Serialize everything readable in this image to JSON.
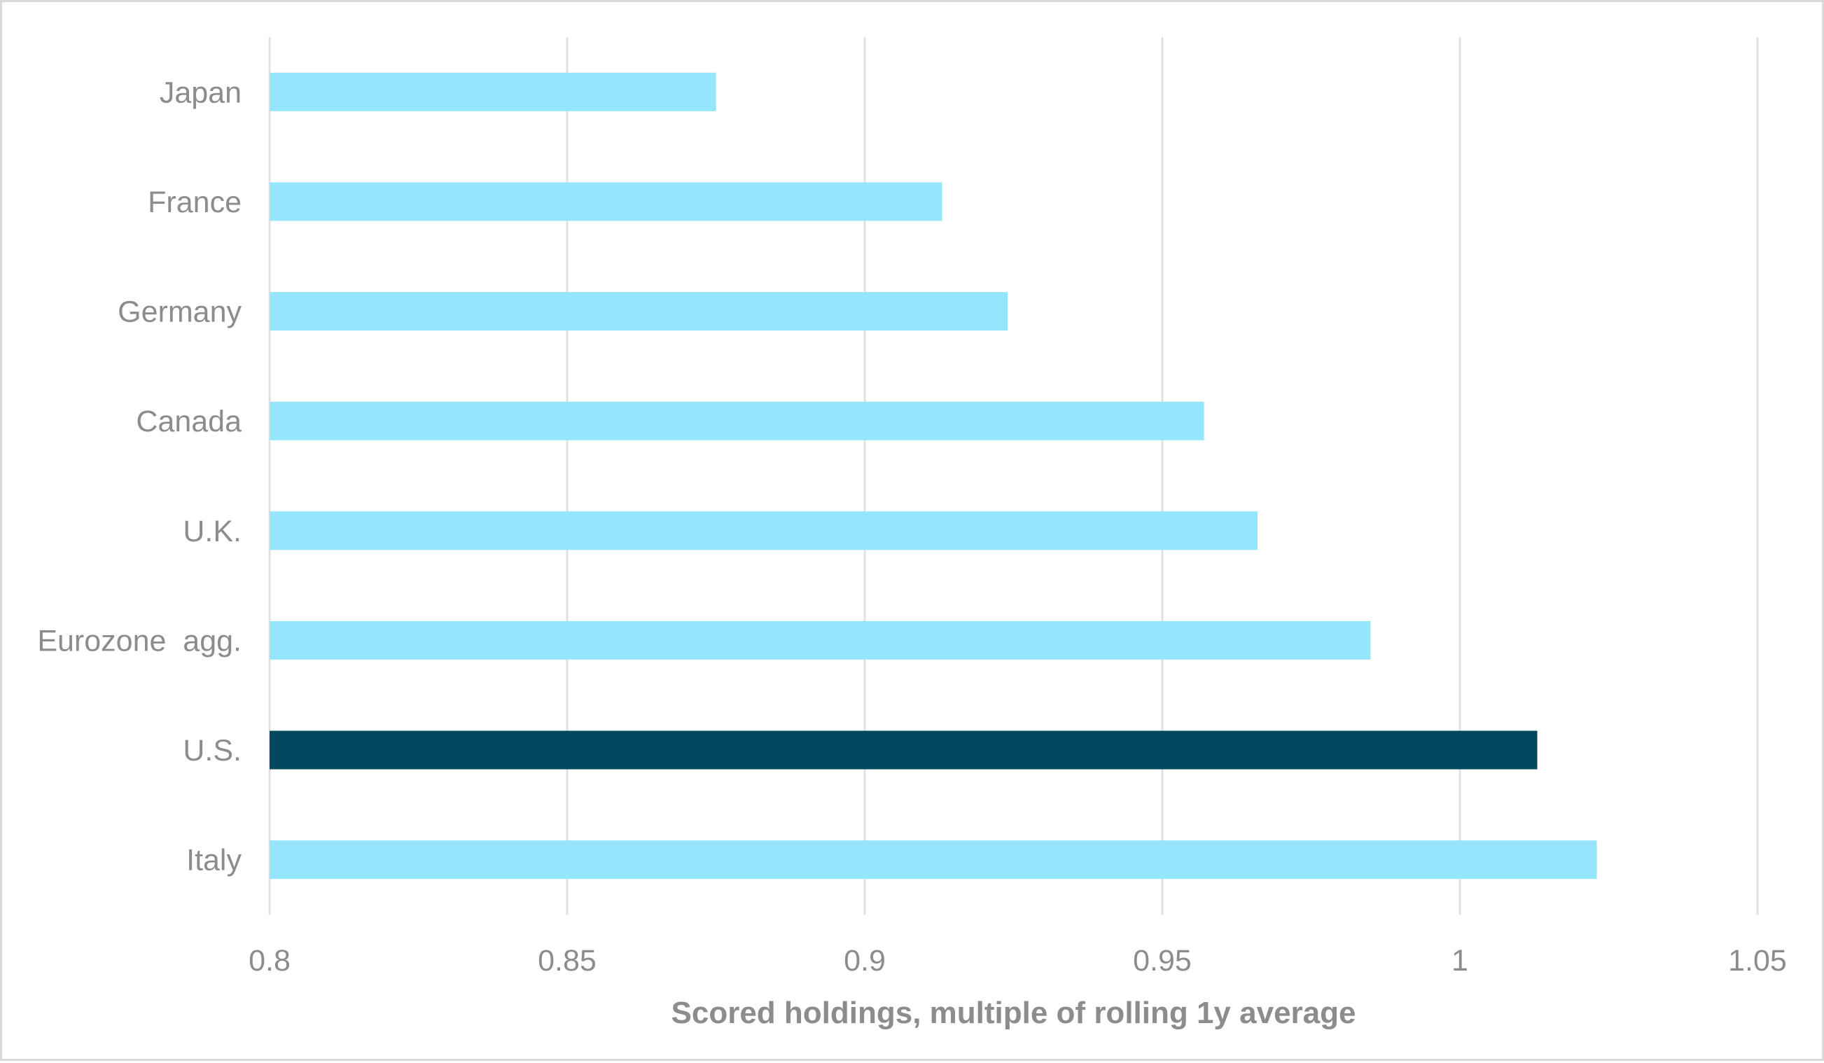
{
  "chart_data": {
    "type": "bar",
    "orientation": "horizontal",
    "categories": [
      "Japan",
      "France",
      "Germany",
      "Canada",
      "U.K.",
      "Eurozone  agg.",
      "U.S.",
      "Italy"
    ],
    "values": [
      0.875,
      0.913,
      0.924,
      0.957,
      0.966,
      0.985,
      1.013,
      1.023
    ],
    "xlabel": "Scored holdings, multiple of rolling 1y average",
    "ylabel": "",
    "xlim": [
      0.8,
      1.05
    ],
    "xticks": [
      0.8,
      0.85,
      0.9,
      0.95,
      1.0,
      1.05
    ],
    "xtick_labels": [
      "0.8",
      "0.85",
      "0.9",
      "0.95",
      "1",
      "1.05"
    ],
    "grid": "vertical",
    "legend": "none",
    "colors": {
      "default_bar": "#95e6fc",
      "highlight_bar": "#02495e",
      "text": "#8c8c8c",
      "grid": "#e0e0e0"
    },
    "highlight_category": "U.S."
  }
}
